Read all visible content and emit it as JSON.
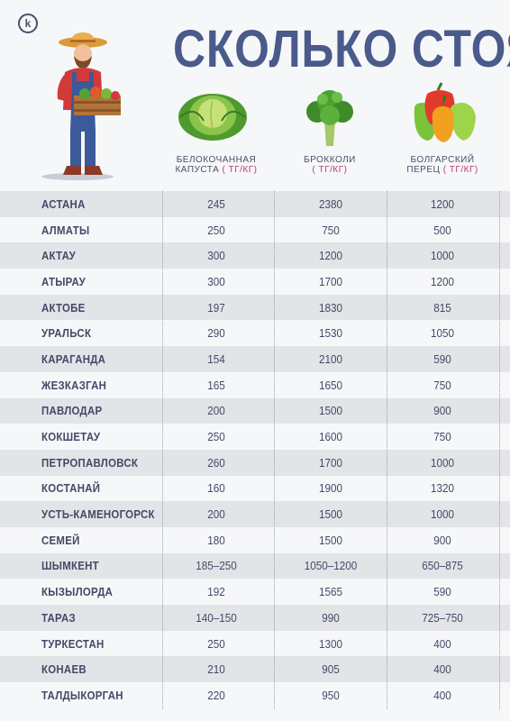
{
  "title": "СКОЛЬКО СТОЯТ",
  "columns": [
    {
      "name_line1": "БЕЛОКОЧАННАЯ",
      "name_line2": "КАПУСТА",
      "unit": "( ТГ/КГ)",
      "icon": "cabbage-icon"
    },
    {
      "name_line1": "",
      "name_line2": "БРОККОЛИ",
      "unit": "( ТГ/КГ)",
      "icon": "broccoli-icon"
    },
    {
      "name_line1": "БОЛГАРСКИЙ",
      "name_line2": "ПЕРЕЦ",
      "unit": "( ТГ/КГ)",
      "icon": "bell-pepper-icon"
    }
  ],
  "rows": [
    {
      "city": "АСТАНА",
      "cabbage": "245",
      "broccoli": "2380",
      "pepper": "1200"
    },
    {
      "city": "АЛМАТЫ",
      "cabbage": "250",
      "broccoli": "750",
      "pepper": "500"
    },
    {
      "city": "АКТАУ",
      "cabbage": "300",
      "broccoli": "1200",
      "pepper": "1000"
    },
    {
      "city": "АТЫРАУ",
      "cabbage": "300",
      "broccoli": "1700",
      "pepper": "1200"
    },
    {
      "city": "АКТОБЕ",
      "cabbage": "197",
      "broccoli": "1830",
      "pepper": "815"
    },
    {
      "city": "УРАЛЬСК",
      "cabbage": "290",
      "broccoli": "1530",
      "pepper": "1050"
    },
    {
      "city": "КАРАГАНДА",
      "cabbage": "154",
      "broccoli": "2100",
      "pepper": "590"
    },
    {
      "city": "ЖЕЗКАЗГАН",
      "cabbage": "165",
      "broccoli": "1650",
      "pepper": "750"
    },
    {
      "city": "ПАВЛОДАР",
      "cabbage": "200",
      "broccoli": "1500",
      "pepper": "900"
    },
    {
      "city": "КОКШЕТАУ",
      "cabbage": "250",
      "broccoli": "1600",
      "pepper": "750"
    },
    {
      "city": "ПЕТРОПАВЛОВСК",
      "cabbage": "260",
      "broccoli": "1700",
      "pepper": "1000"
    },
    {
      "city": "КОСТАНАЙ",
      "cabbage": "160",
      "broccoli": "1900",
      "pepper": "1320"
    },
    {
      "city": "УСТЬ-КАМЕНОГОРСК",
      "cabbage": "200",
      "broccoli": "1500",
      "pepper": "1000"
    },
    {
      "city": "СЕМЕЙ",
      "cabbage": "180",
      "broccoli": "1500",
      "pepper": "900"
    },
    {
      "city": "ШЫМКЕНТ",
      "cabbage": "185–250",
      "broccoli": "1050–1200",
      "pepper": "650–875"
    },
    {
      "city": "КЫЗЫЛОРДА",
      "cabbage": "192",
      "broccoli": "1565",
      "pepper": "590"
    },
    {
      "city": "ТАРАЗ",
      "cabbage": "140–150",
      "broccoli": "990",
      "pepper": "725–750"
    },
    {
      "city": "ТУРКЕСТАН",
      "cabbage": "250",
      "broccoli": "1300",
      "pepper": "400"
    },
    {
      "city": "КОНАЕВ",
      "cabbage": "210",
      "broccoli": "905",
      "pepper": "400"
    },
    {
      "city": "ТАЛДЫКОРГАН",
      "cabbage": "220",
      "broccoli": "950",
      "pepper": "400"
    }
  ],
  "logo_letter": "k",
  "colors": {
    "title": "#4a5a8a",
    "unit": "#c0397a",
    "stripe": "#e2e4e8",
    "text": "#444a66"
  }
}
